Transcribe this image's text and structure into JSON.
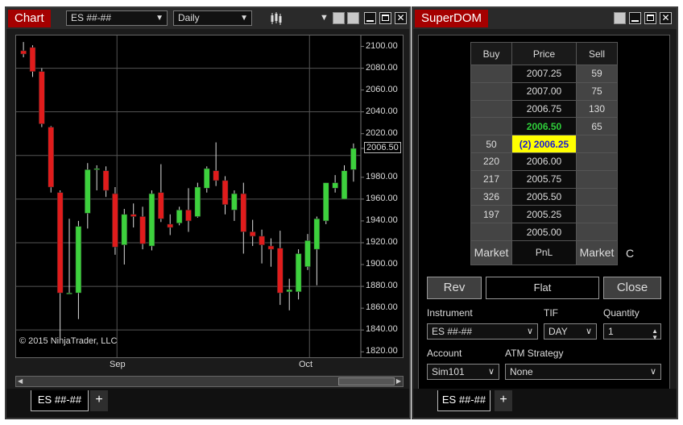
{
  "chart": {
    "title": "Chart",
    "instrument": "ES ##-##",
    "interval": "Daily",
    "price_labels": [
      "2100.00",
      "2080.00",
      "2060.00",
      "2040.00",
      "2020.00",
      "2006.50",
      "1980.00",
      "1960.00",
      "1940.00",
      "1920.00",
      "1900.00",
      "1880.00",
      "1860.00",
      "1840.00",
      "1820.00"
    ],
    "date_labels": [
      "Sep",
      "Oct"
    ],
    "copyright": "© 2015 NinjaTrader, LLC",
    "tab_label": "ES ##-##",
    "tab_add": "+",
    "current_price": "2006.50"
  },
  "chart_data": {
    "type": "candlestick",
    "title": "",
    "xlabel": "",
    "ylabel": "",
    "ylim": [
      1815,
      2110
    ],
    "x_ticks": [
      "Sep",
      "Oct"
    ],
    "up_color": "#3dd13d",
    "down_color": "#e01c1c",
    "candles": [
      {
        "o": 2096,
        "h": 2104,
        "l": 2090,
        "c": 2093
      },
      {
        "o": 2099,
        "h": 2101,
        "l": 2072,
        "c": 2077
      },
      {
        "o": 2077,
        "h": 2080,
        "l": 2026,
        "c": 2029
      },
      {
        "o": 2026,
        "h": 2027,
        "l": 1966,
        "c": 1971
      },
      {
        "o": 1966,
        "h": 1968,
        "l": 1832,
        "c": 1874
      },
      {
        "o": 1874,
        "h": 1942,
        "l": 1874,
        "c": 1874
      },
      {
        "o": 1874,
        "h": 1940,
        "l": 1850,
        "c": 1935
      },
      {
        "o": 1947,
        "h": 1993,
        "l": 1933,
        "c": 1987
      },
      {
        "o": 1988,
        "h": 1991,
        "l": 1968,
        "c": 1988
      },
      {
        "o": 1986,
        "h": 1990,
        "l": 1962,
        "c": 1968
      },
      {
        "o": 1965,
        "h": 1971,
        "l": 1909,
        "c": 1916
      },
      {
        "o": 1918,
        "h": 1951,
        "l": 1900,
        "c": 1946
      },
      {
        "o": 1946,
        "h": 1956,
        "l": 1934,
        "c": 1944
      },
      {
        "o": 1944,
        "h": 1953,
        "l": 1914,
        "c": 1919
      },
      {
        "o": 1917,
        "h": 1968,
        "l": 1913,
        "c": 1965
      },
      {
        "o": 1966,
        "h": 1992,
        "l": 1939,
        "c": 1942
      },
      {
        "o": 1937,
        "h": 1946,
        "l": 1927,
        "c": 1934
      },
      {
        "o": 1938,
        "h": 1953,
        "l": 1936,
        "c": 1950
      },
      {
        "o": 1950,
        "h": 1970,
        "l": 1930,
        "c": 1940
      },
      {
        "o": 1944,
        "h": 1975,
        "l": 1943,
        "c": 1971
      },
      {
        "o": 1970,
        "h": 1990,
        "l": 1966,
        "c": 1988
      },
      {
        "o": 1986,
        "h": 2012,
        "l": 1972,
        "c": 1977
      },
      {
        "o": 1977,
        "h": 1981,
        "l": 1946,
        "c": 1955
      },
      {
        "o": 1950,
        "h": 1968,
        "l": 1940,
        "c": 1965
      },
      {
        "o": 1965,
        "h": 1975,
        "l": 1910,
        "c": 1930
      },
      {
        "o": 1930,
        "h": 1941,
        "l": 1917,
        "c": 1926
      },
      {
        "o": 1926,
        "h": 1932,
        "l": 1901,
        "c": 1918
      },
      {
        "o": 1917,
        "h": 1924,
        "l": 1898,
        "c": 1914
      },
      {
        "o": 1915,
        "h": 1931,
        "l": 1863,
        "c": 1874
      },
      {
        "o": 1875,
        "h": 1887,
        "l": 1858,
        "c": 1877
      },
      {
        "o": 1875,
        "h": 1914,
        "l": 1868,
        "c": 1910
      },
      {
        "o": 1898,
        "h": 1928,
        "l": 1895,
        "c": 1922
      },
      {
        "o": 1914,
        "h": 1944,
        "l": 1881,
        "c": 1942
      },
      {
        "o": 1940,
        "h": 1975,
        "l": 1937,
        "c": 1975
      },
      {
        "o": 1970,
        "h": 1982,
        "l": 1966,
        "c": 1975
      },
      {
        "o": 1960,
        "h": 1991,
        "l": 1960,
        "c": 1986
      },
      {
        "o": 1987,
        "h": 2011,
        "l": 1976,
        "c": 2006.5
      }
    ]
  },
  "dom": {
    "title": "SuperDOM",
    "headers": {
      "buy": "Buy",
      "price": "Price",
      "sell": "Sell"
    },
    "rows": [
      {
        "buy": "",
        "price": "2007.25",
        "sell": "59"
      },
      {
        "buy": "",
        "price": "2007.00",
        "sell": "75"
      },
      {
        "buy": "",
        "price": "2006.75",
        "sell": "130"
      },
      {
        "buy": "",
        "price": "2006.50",
        "sell": "65"
      },
      {
        "buy": "50",
        "price": "(2) 2006.25",
        "sell": ""
      },
      {
        "buy": "220",
        "price": "2006.00",
        "sell": ""
      },
      {
        "buy": "217",
        "price": "2005.75",
        "sell": ""
      },
      {
        "buy": "326",
        "price": "2005.50",
        "sell": ""
      },
      {
        "buy": "197",
        "price": "2005.25",
        "sell": ""
      },
      {
        "buy": "",
        "price": "2005.00",
        "sell": ""
      }
    ],
    "market_buy": "Market",
    "pnl": "PnL",
    "market_sell": "Market",
    "side_letter": "C",
    "rev_button": "Rev",
    "position": "Flat",
    "close_button": "Close",
    "instrument_label": "Instrument",
    "instrument_value": "ES ##-##",
    "tif_label": "TIF",
    "tif_value": "DAY",
    "quantity_label": "Quantity",
    "quantity_value": "1",
    "account_label": "Account",
    "account_value": "Sim101",
    "atm_label": "ATM Strategy",
    "atm_value": "None",
    "tab_label": "ES ##-##",
    "tab_add": "+"
  }
}
